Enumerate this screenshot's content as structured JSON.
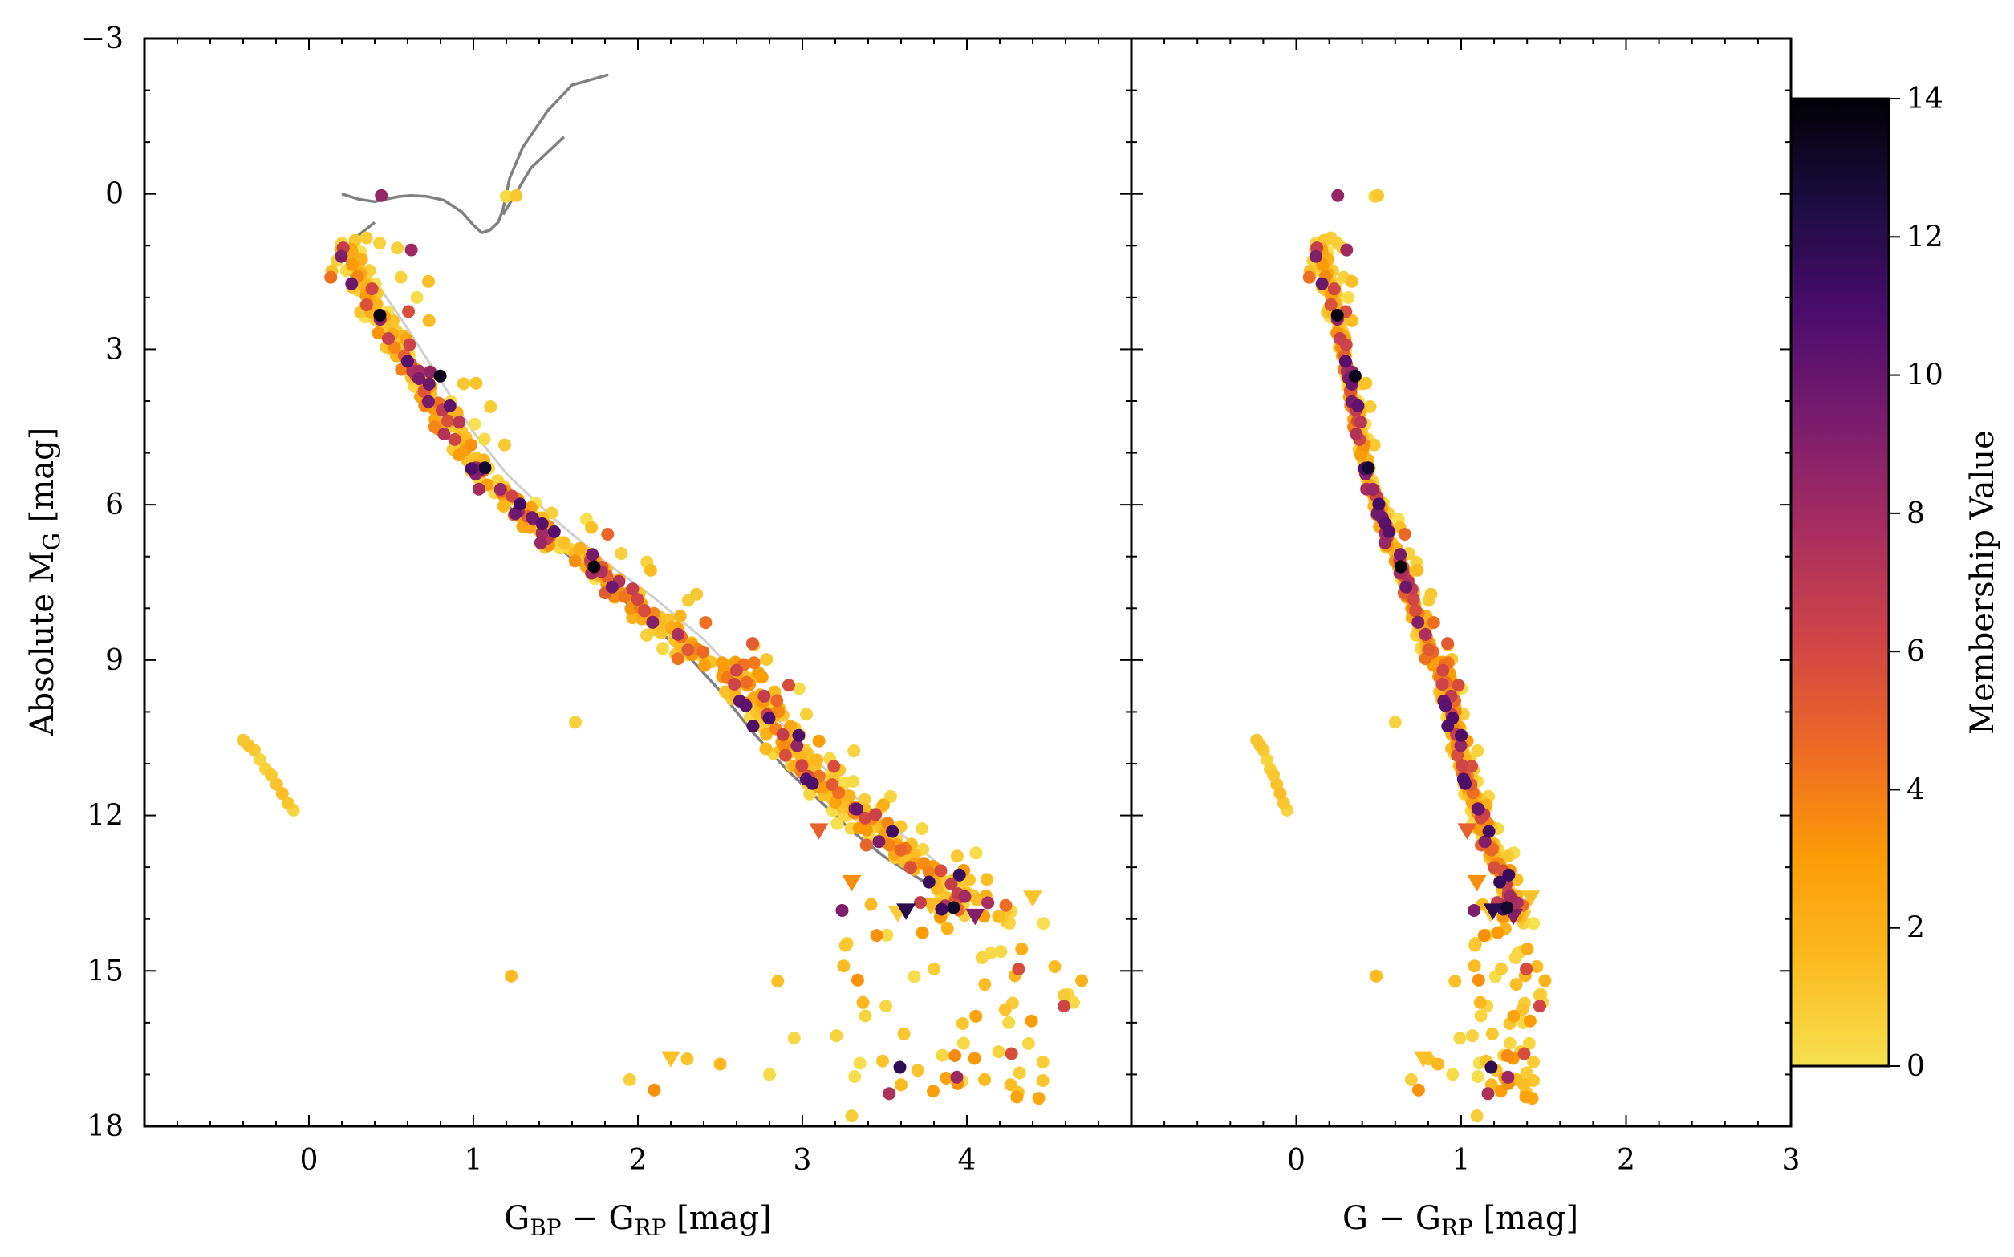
{
  "chart_data": [
    {
      "type": "scatter",
      "panel": "left",
      "xlabel": "G_BP − G_RP [mag]",
      "xlabel_main": "G",
      "xlabel_sub1": "BP",
      "xlabel_mid": " − G",
      "xlabel_sub2": "RP",
      "xlabel_unit": " [mag]",
      "ylabel": "Absolute M_G [mag]",
      "ylabel_main": "Absolute M",
      "ylabel_sub": "G",
      "ylabel_unit": " [mag]",
      "xlim": [
        -1.0,
        5.0
      ],
      "ylim": [
        18,
        -3
      ],
      "xticks": [
        "0",
        "1",
        "2",
        "3",
        "4"
      ],
      "yticks": [
        "−3",
        "0",
        "3",
        "6",
        "9",
        "12",
        "15",
        "18"
      ],
      "isochrone_dark": [
        [
          0.2,
          0.0
        ],
        [
          0.3,
          0.1
        ],
        [
          0.4,
          0.15
        ],
        [
          0.5,
          0.08
        ],
        [
          0.55,
          0.05
        ],
        [
          0.62,
          0.03
        ],
        [
          0.72,
          0.05
        ],
        [
          0.82,
          0.12
        ],
        [
          0.93,
          0.35
        ],
        [
          1.0,
          0.6
        ],
        [
          1.05,
          0.75
        ],
        [
          1.1,
          0.7
        ],
        [
          1.15,
          0.55
        ],
        [
          1.18,
          0.3
        ],
        [
          1.22,
          -0.3
        ],
        [
          1.3,
          -0.9
        ],
        [
          1.45,
          -1.6
        ],
        [
          1.6,
          -2.1
        ],
        [
          1.82,
          -2.3
        ]
      ],
      "isochrone_dark_branch": [
        [
          1.18,
          0.4
        ],
        [
          1.35,
          -0.5
        ],
        [
          1.55,
          -1.1
        ]
      ],
      "isochrone_dark_ms": [
        [
          0.4,
          0.55
        ],
        [
          0.3,
          0.8
        ],
        [
          0.24,
          1.0
        ],
        [
          0.22,
          1.2
        ],
        [
          0.26,
          1.6
        ],
        [
          0.35,
          2.2
        ],
        [
          0.45,
          2.7
        ],
        [
          0.6,
          3.4
        ],
        [
          0.8,
          4.5
        ],
        [
          1.0,
          5.4
        ],
        [
          1.2,
          6.0
        ],
        [
          1.5,
          6.8
        ],
        [
          1.8,
          7.5
        ],
        [
          2.0,
          8.1
        ],
        [
          2.3,
          8.9
        ],
        [
          2.5,
          9.6
        ],
        [
          2.7,
          10.4
        ],
        [
          2.9,
          11.1
        ],
        [
          3.1,
          11.7
        ],
        [
          3.3,
          12.3
        ],
        [
          3.5,
          12.8
        ],
        [
          3.75,
          13.3
        ]
      ],
      "isochrone_light": [
        [
          0.3,
          1.4
        ],
        [
          0.45,
          1.9
        ],
        [
          0.6,
          2.6
        ],
        [
          0.8,
          3.6
        ],
        [
          1.0,
          4.6
        ],
        [
          1.2,
          5.4
        ],
        [
          1.5,
          6.3
        ],
        [
          1.8,
          7.1
        ],
        [
          2.1,
          7.8
        ],
        [
          2.4,
          8.6
        ],
        [
          2.7,
          9.6
        ],
        [
          2.95,
          10.5
        ],
        [
          3.2,
          11.3
        ],
        [
          3.45,
          12.0
        ],
        [
          3.7,
          12.6
        ],
        [
          3.85,
          13.0
        ]
      ]
    },
    {
      "type": "scatter",
      "panel": "right",
      "xlabel": "G − G_RP [mag]",
      "xlabel_main": "G − G",
      "xlabel_sub": "RP",
      "xlabel_unit": " [mag]",
      "xlim": [
        -1.0,
        3.0
      ],
      "ylim": [
        18,
        -3
      ],
      "xticks": [
        "0",
        "1",
        "2",
        "3"
      ]
    },
    {
      "type": "colorbar",
      "label": "Membership Value",
      "colormap": "inferno_r",
      "range": [
        0,
        14
      ],
      "ticks": [
        "0",
        "2",
        "4",
        "6",
        "8",
        "10",
        "12",
        "14"
      ],
      "stops": [
        "#f6e150",
        "#fbba1f",
        "#fb9b06",
        "#ed6925",
        "#cf4446",
        "#a52c60",
        "#781c6d",
        "#4a0c6b",
        "#1b0c41",
        "#000004"
      ]
    }
  ]
}
